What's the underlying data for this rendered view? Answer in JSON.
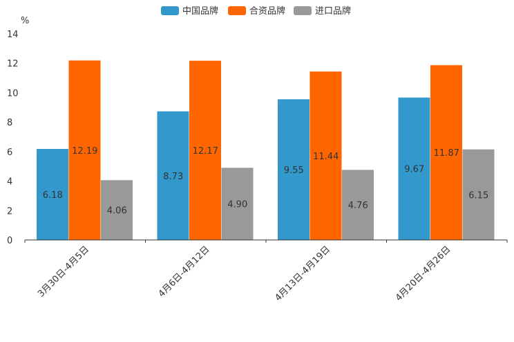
{
  "chart_data": {
    "type": "bar",
    "title": "",
    "xlabel": "",
    "ylabel": "%",
    "ylim": [
      0,
      14
    ],
    "yticks": [
      0,
      2,
      4,
      6,
      8,
      10,
      12,
      14
    ],
    "grid": false,
    "legend_position": "top-center",
    "categories": [
      "3月30日-4月5日",
      "4月6日-4月12日",
      "4月13日-4月19日",
      "4月20日-4月26日"
    ],
    "series": [
      {
        "name": "中国品牌",
        "color": "#3399cc",
        "values": [
          6.18,
          8.73,
          9.55,
          9.67
        ],
        "labels": [
          "6.18",
          "8.73",
          "9.55",
          "9.67"
        ]
      },
      {
        "name": "合资品牌",
        "color": "#ff6600",
        "values": [
          12.19,
          12.17,
          11.44,
          11.87
        ],
        "labels": [
          "12.19",
          "12.17",
          "11.44",
          "11.87"
        ]
      },
      {
        "name": "进口品牌",
        "color": "#999999",
        "values": [
          4.06,
          4.9,
          4.76,
          6.15
        ],
        "labels": [
          "4.06",
          "4.90",
          "4.76",
          "6.15"
        ]
      }
    ]
  }
}
